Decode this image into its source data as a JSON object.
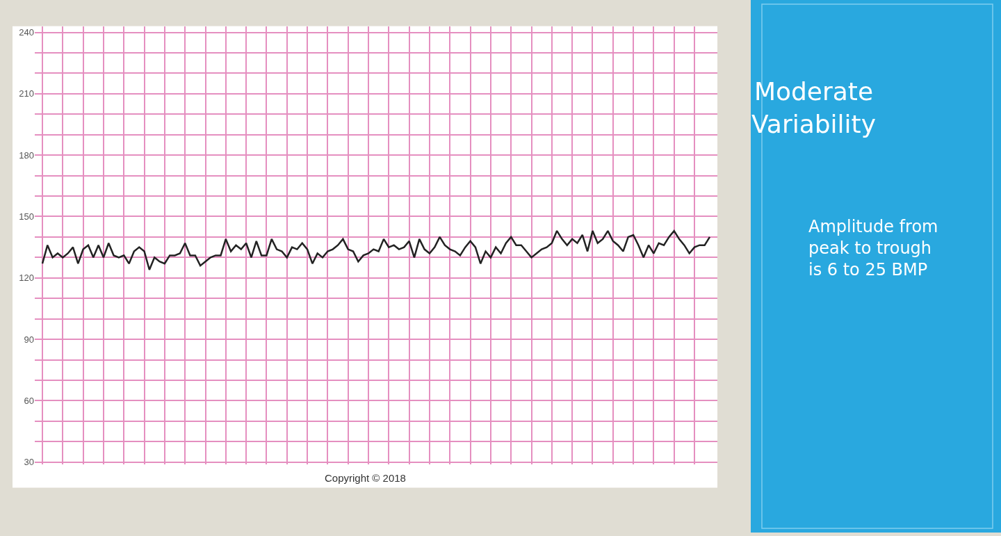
{
  "chart_data": {
    "type": "line",
    "title": "Moderate Variability",
    "annotations": [
      "Amplitude from peak to trough is 6 to 25 BMP",
      "Copyright © 2018"
    ],
    "categories": [
      null,
      null,
      null,
      null,
      null,
      null,
      null,
      null,
      null,
      null,
      null,
      null,
      null,
      null,
      null,
      null,
      null,
      null,
      null,
      null,
      null,
      null,
      null,
      null,
      null,
      null,
      null,
      null,
      null,
      null,
      null,
      null,
      null,
      null,
      null,
      null,
      null,
      null,
      null,
      null,
      null,
      null,
      null,
      null,
      null,
      null,
      null,
      null,
      null,
      null,
      null,
      null,
      null,
      null,
      null,
      null,
      null,
      null,
      null,
      null,
      null,
      null,
      null,
      null,
      null,
      null,
      null,
      null,
      null,
      null,
      null,
      null,
      null,
      null,
      null,
      null,
      null,
      null,
      null,
      null,
      null,
      null,
      null,
      null,
      null,
      null,
      null,
      null,
      null,
      null,
      null,
      null,
      null,
      null,
      null,
      null,
      null,
      null,
      null,
      null,
      null,
      null,
      null,
      null,
      null,
      null,
      null,
      null,
      null,
      null,
      null,
      null,
      null,
      null,
      null,
      null,
      null,
      null,
      null,
      null,
      null,
      null,
      null,
      null,
      null,
      null,
      null,
      null,
      null,
      null,
      null,
      null
    ],
    "values": [
      127,
      136,
      130,
      132,
      130,
      132,
      135,
      127,
      134,
      136,
      130,
      136,
      130,
      137,
      131,
      130,
      131,
      127,
      133,
      135,
      133,
      124,
      130,
      128,
      127,
      131,
      131,
      132,
      137,
      131,
      131,
      126,
      128,
      130,
      131,
      131,
      139,
      133,
      136,
      134,
      137,
      130,
      138,
      131,
      131,
      139,
      134,
      133,
      130,
      135,
      134,
      137,
      134,
      127,
      132,
      130,
      133,
      134,
      136,
      139,
      134,
      133,
      128,
      131,
      132,
      134,
      133,
      139,
      135,
      136,
      134,
      135,
      138,
      130,
      139,
      134,
      132,
      135,
      140,
      136,
      134,
      133,
      131,
      135,
      138,
      135,
      127,
      133,
      130,
      135,
      132,
      137,
      140,
      136,
      136,
      133,
      130,
      132,
      134,
      135,
      137,
      143,
      139,
      136,
      139,
      137,
      141,
      133,
      143,
      137,
      139,
      143,
      138,
      136,
      133,
      140,
      141,
      136,
      130,
      136,
      132,
      137,
      136,
      140,
      143,
      139,
      136,
      132,
      135,
      136,
      136,
      140
    ],
    "color": "#222222",
    "ylim": [
      29,
      243
    ],
    "yticks": [
      30,
      {
        "value": 40,
        "label": null
      },
      {
        "value": 50,
        "label": null
      },
      60,
      {
        "value": 70,
        "label": null
      },
      {
        "value": 80,
        "label": null
      },
      90,
      {
        "value": 100,
        "label": null
      },
      {
        "value": 110,
        "label": null
      },
      120,
      {
        "value": 130,
        "label": null
      },
      {
        "value": 140,
        "label": null
      },
      150,
      {
        "value": 160,
        "label": null
      },
      {
        "value": 170,
        "label": null
      },
      180,
      {
        "value": 190,
        "label": null
      },
      {
        "value": 200,
        "label": null
      },
      210,
      {
        "value": 220,
        "label": null
      },
      {
        "value": 230,
        "label": null
      },
      240
    ],
    "grid": true
  }
}
